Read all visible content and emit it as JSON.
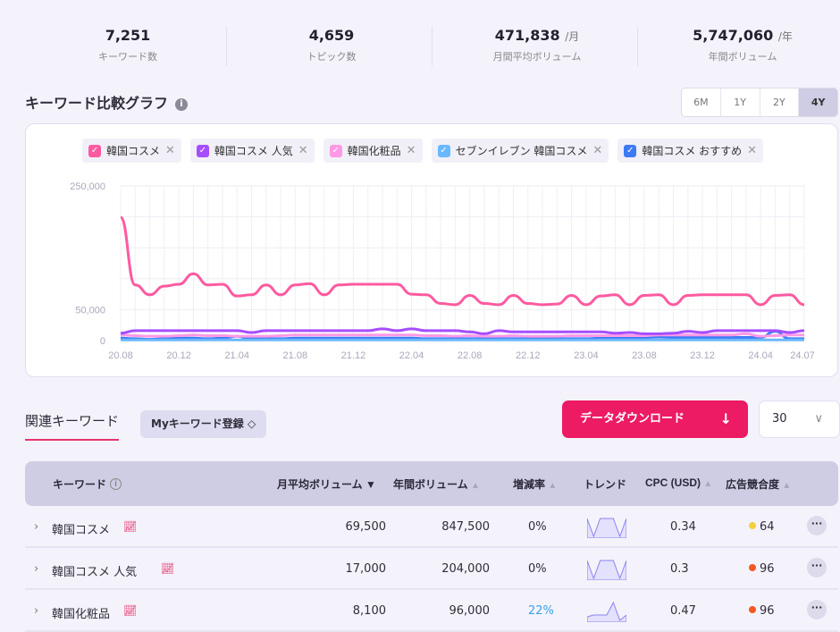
{
  "stats": [
    {
      "value": "7,251",
      "unit": "",
      "label": "キーワード数"
    },
    {
      "value": "4,659",
      "unit": "",
      "label": "トピック数"
    },
    {
      "value": "471,838",
      "unit": "/月",
      "label": "月間平均ボリューム"
    },
    {
      "value": "5,747,060",
      "unit": "/年",
      "label": "年間ボリューム"
    }
  ],
  "graph": {
    "title": "キーワード比較グラフ",
    "info_icon": "i",
    "ranges": [
      "6M",
      "1Y",
      "2Y",
      "4Y"
    ],
    "active_range": "4Y"
  },
  "chart_data": {
    "type": "line",
    "y_ticks": [
      "250,000",
      "50,000",
      "0"
    ],
    "ylim": [
      0,
      250000
    ],
    "grid": true,
    "x_labels": [
      "20.08",
      "20.12",
      "21.04",
      "21.08",
      "21.12",
      "22.04",
      "22.08",
      "22.12",
      "23.04",
      "23.08",
      "23.12",
      "24.04",
      "24.07"
    ],
    "series": [
      {
        "name": "韓国コスメ",
        "color": "#ff5aa0",
        "values": [
          199000,
          90000,
          74000,
          88000,
          91000,
          108000,
          90000,
          91000,
          72000,
          74000,
          90000,
          74000,
          90000,
          92000,
          74000,
          90000,
          91000,
          91000,
          91000,
          91000,
          75000,
          74000,
          60000,
          58000,
          73000,
          60000,
          58000,
          73000,
          60000,
          58000,
          59000,
          73000,
          58000,
          72000,
          74000,
          58000,
          73000,
          74000,
          58000,
          73000,
          74000,
          74000,
          74000,
          74000,
          58000,
          73000,
          74000,
          58000
        ]
      },
      {
        "name": "韓国コスメ 人気",
        "color": "#a64dff",
        "values": [
          12000,
          16000,
          16000,
          16000,
          16000,
          16000,
          16000,
          16000,
          16000,
          13000,
          16000,
          16000,
          16000,
          16000,
          16000,
          16000,
          16000,
          16000,
          19000,
          16000,
          19000,
          16000,
          16000,
          16000,
          14000,
          11000,
          16000,
          14000,
          14000,
          14000,
          14000,
          14000,
          14000,
          14000,
          12000,
          13000,
          11000,
          11000,
          12000,
          15000,
          13000,
          16000,
          16000,
          16000,
          16000,
          16000,
          13000,
          16000
        ]
      },
      {
        "name": "韓国化粧品",
        "color": "#ff99e6",
        "values": [
          9000,
          8000,
          7000,
          7000,
          8000,
          9000,
          8000,
          8000,
          7000,
          7000,
          7000,
          8000,
          9000,
          9000,
          9000,
          9000,
          9000,
          9000,
          9000,
          9000,
          9000,
          8000,
          8000,
          7000,
          8000,
          7000,
          7000,
          8000,
          7000,
          7000,
          7000,
          8000,
          8000,
          8000,
          8000,
          8000,
          8000,
          9000,
          9000,
          9000,
          9000,
          9000,
          9000,
          11000,
          7000,
          8000,
          9000,
          9000
        ]
      },
      {
        "name": "セブンイレブン 韓国コスメ",
        "color": "#6ab8ff",
        "values": [
          1000,
          1000,
          1000,
          1000,
          1000,
          1000,
          1000,
          1000,
          1000,
          1000,
          1000,
          1000,
          1000,
          1000,
          1000,
          1000,
          1000,
          1000,
          1000,
          1000,
          1000,
          1000,
          1000,
          1000,
          1000,
          1000,
          1000,
          1000,
          1000,
          1000,
          1000,
          1000,
          1000,
          1000,
          1000,
          1000,
          1000,
          1000,
          1000,
          1000,
          1000,
          1000,
          1000,
          1000,
          1000,
          1000,
          1000,
          1000
        ]
      },
      {
        "name": "韓国コスメ おすすめ",
        "color": "#3d7bf5",
        "values": [
          4000,
          3000,
          2000,
          3000,
          4000,
          4000,
          3000,
          4000,
          7000,
          3000,
          3000,
          3000,
          4000,
          4000,
          4000,
          4000,
          4000,
          4000,
          4000,
          4000,
          4000,
          3000,
          3000,
          3000,
          3000,
          3000,
          3000,
          3000,
          3000,
          3000,
          3000,
          3000,
          3000,
          4000,
          4000,
          5000,
          5000,
          6000,
          5000,
          5000,
          5000,
          5000,
          5000,
          5000,
          5000,
          15000,
          3000,
          3000
        ]
      }
    ]
  },
  "related": {
    "tab": "関連キーワード",
    "my_button": "Myキーワード登録 ◇",
    "download": "データダウンロード",
    "download_icon": "↓",
    "page_size": "30",
    "chevron": "∨"
  },
  "table": {
    "headers": {
      "keyword": "キーワード",
      "monthly": "月平均ボリューム",
      "annual": "年間ボリューム",
      "change": "増減率",
      "trend": "トレンド",
      "cpc": "CPC (USD)",
      "competition": "広告競合度"
    },
    "rows": [
      {
        "keyword": "韓国コスメ",
        "monthly": "69,500",
        "annual": "847,500",
        "change": "0%",
        "change_color": "#2f2d3a",
        "trend": [
          1,
          0,
          1,
          1,
          1,
          0,
          1
        ],
        "cpc": "0.34",
        "competition": "64",
        "comp_color": "#f7cf3d"
      },
      {
        "keyword": "韓国コスメ 人気",
        "monthly": "17,000",
        "annual": "204,000",
        "change": "0%",
        "change_color": "#2f2d3a",
        "trend": [
          1,
          0,
          1,
          1,
          1,
          0,
          1
        ],
        "cpc": "0.3",
        "competition": "96",
        "comp_color": "#f25a22"
      },
      {
        "keyword": "韓国化粧品",
        "monthly": "8,100",
        "annual": "96,000",
        "change": "22%",
        "change_color": "#3aa0e8",
        "trend": [
          0.2,
          0.3,
          0.3,
          0.3,
          1,
          0,
          0.3
        ],
        "cpc": "0.47",
        "competition": "96",
        "comp_color": "#f25a22"
      }
    ]
  }
}
